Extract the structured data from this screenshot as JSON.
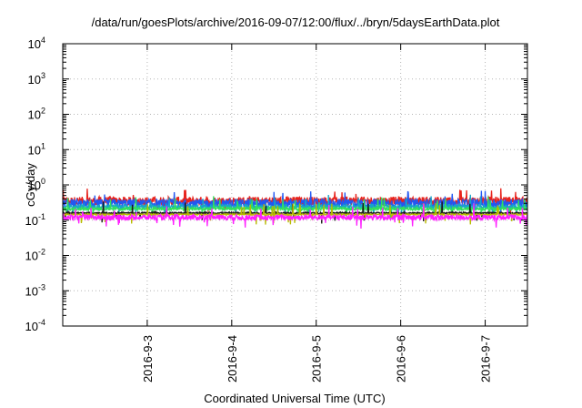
{
  "chart_data": {
    "type": "line",
    "title": "/data/run/goesPlots/archive/2016-09-07/12:00/flux/../bryn/5daysEarthData.plot",
    "xlabel": "Coordinated Universal Time (UTC)",
    "ylabel": "cGy/day",
    "yscale": "log",
    "ylim": [
      0.0001,
      10000
    ],
    "y_ticks": [
      {
        "base": "10",
        "exp": "4"
      },
      {
        "base": "10",
        "exp": "3"
      },
      {
        "base": "10",
        "exp": "2"
      },
      {
        "base": "10",
        "exp": "1"
      },
      {
        "base": "10",
        "exp": "0"
      },
      {
        "base": "10",
        "exp": "-1"
      },
      {
        "base": "10",
        "exp": "-2"
      },
      {
        "base": "10",
        "exp": "-3"
      },
      {
        "base": "10",
        "exp": "-4"
      }
    ],
    "xlim": [
      "2016-09-02T00:00",
      "2016-09-07T12:00"
    ],
    "x_ticks": [
      "2016-9-3",
      "2016-9-4",
      "2016-9-5",
      "2016-9-6",
      "2016-9-7"
    ],
    "x_tick_dates": [
      "2016-09-03",
      "2016-09-04",
      "2016-09-05",
      "2016-09-06",
      "2016-09-07"
    ],
    "grid": true,
    "series": [
      {
        "color": "#e8231c",
        "typical": 0.35,
        "spread": 0.28
      },
      {
        "color": "#2257f2",
        "typical": 0.3,
        "spread": 0.28
      },
      {
        "color": "#16a5c9",
        "typical": 0.24,
        "spread": 0.16
      },
      {
        "color": "#33e05c",
        "typical": 0.21,
        "spread": 0.1
      },
      {
        "color": "#1a1a1a",
        "typical": 0.16,
        "spread": 0.05
      },
      {
        "color": "#b8bb00",
        "typical": 0.145,
        "spread": 0.04
      },
      {
        "color": "#ff1fff",
        "typical": 0.12,
        "spread": 0.18
      }
    ]
  }
}
